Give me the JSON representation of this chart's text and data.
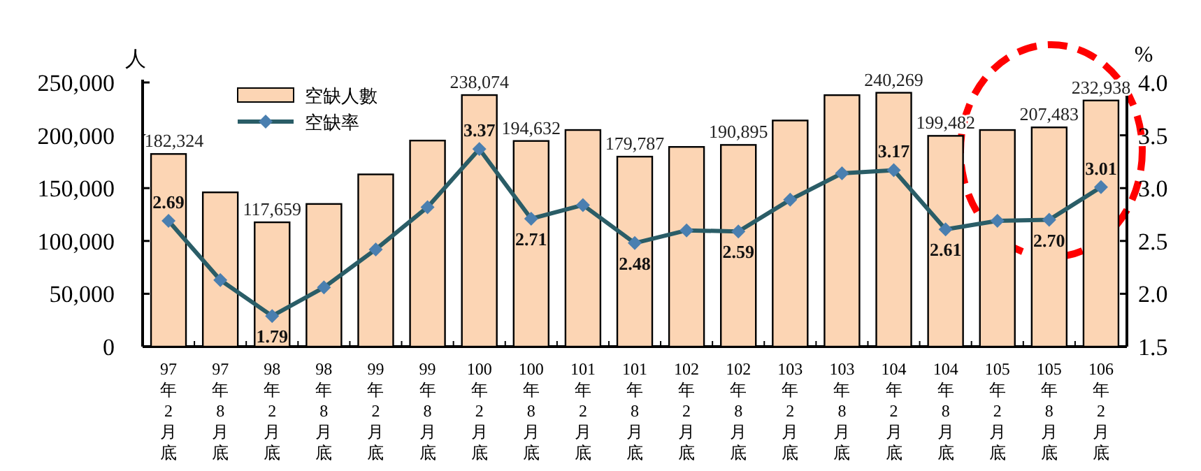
{
  "chart_data": {
    "type": "bar",
    "categories": [
      "97年2月底",
      "97年8月底",
      "98年2月底",
      "98年8月底",
      "99年2月底",
      "99年8月底",
      "100年2月底",
      "100年8月底",
      "101年2月底",
      "101年8月底",
      "102年2月底",
      "102年8月底",
      "103年2月底",
      "103年8月底",
      "104年2月底",
      "104年8月底",
      "105年2月底",
      "105年8月底",
      "106年2月底"
    ],
    "ylabel": "人",
    "y2label": "%",
    "ylim": [
      0,
      250000
    ],
    "yticks": [
      {
        "value": 0,
        "label": "0"
      },
      {
        "value": 50000,
        "label": "50,000"
      },
      {
        "value": 100000,
        "label": "100,000"
      },
      {
        "value": 150000,
        "label": "150,000"
      },
      {
        "value": 200000,
        "label": "200,000"
      },
      {
        "value": 250000,
        "label": "250,000"
      }
    ],
    "y2lim": [
      1.5,
      4.0
    ],
    "y2ticks": [
      {
        "value": 1.5,
        "label": "1.5"
      },
      {
        "value": 2.0,
        "label": "2.0"
      },
      {
        "value": 2.5,
        "label": "2.5"
      },
      {
        "value": 3.0,
        "label": "3.0"
      },
      {
        "value": 3.5,
        "label": "3.5"
      },
      {
        "value": 4.0,
        "label": "4.0"
      }
    ],
    "series": [
      {
        "name": "空缺人數",
        "color": "#fcd5b4",
        "values": [
          182324,
          146000,
          117659,
          135000,
          163000,
          195000,
          238074,
          194632,
          205000,
          179787,
          189000,
          190895,
          214000,
          238000,
          240269,
          199482,
          205000,
          207483,
          232938
        ],
        "value_labels": [
          "182,324",
          null,
          "117,659",
          null,
          null,
          null,
          "238,074",
          "194,632",
          null,
          "179,787",
          null,
          "190,895",
          null,
          null,
          "240,269",
          "199,482",
          null,
          "207,483",
          "232,938"
        ]
      },
      {
        "name": "空缺率",
        "type": "line",
        "axis": "y2",
        "color": "#2a5d67",
        "marker": "diamond",
        "values": [
          2.69,
          2.13,
          1.79,
          2.06,
          2.42,
          2.82,
          3.37,
          2.71,
          2.84,
          2.48,
          2.6,
          2.59,
          2.89,
          3.14,
          3.17,
          2.61,
          2.69,
          2.7,
          3.01
        ],
        "value_labels": [
          "2.69",
          null,
          "1.79",
          null,
          null,
          null,
          "3.37",
          "2.71",
          null,
          "2.48",
          null,
          "2.59",
          null,
          null,
          "3.17",
          "2.61",
          null,
          "2.70",
          "3.01"
        ]
      }
    ],
    "legend": "top left",
    "grid": false
  }
}
